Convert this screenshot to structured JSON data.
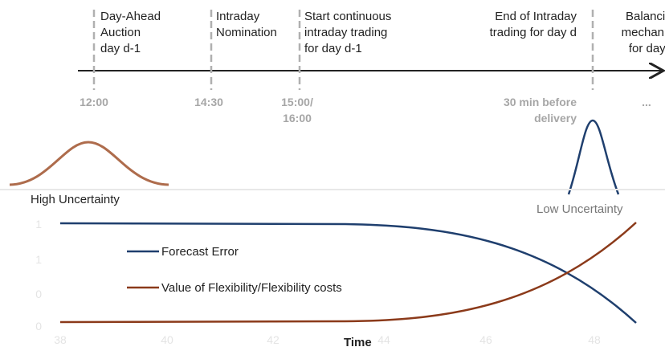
{
  "timeline": {
    "events": [
      {
        "label": [
          "Day-Ahead",
          "Auction",
          "day d-1"
        ],
        "time": [
          "12:00"
        ]
      },
      {
        "label": [
          "Intraday",
          "Nomination"
        ],
        "time": [
          "14:30"
        ]
      },
      {
        "label": [
          "Start continuous",
          "intraday trading",
          "for day d-1"
        ],
        "time": [
          "15:00/",
          "16:00"
        ]
      },
      {
        "label": [
          "End of Intraday",
          "trading for day d"
        ],
        "time": [
          "30 min before",
          "delivery"
        ]
      },
      {
        "label": [
          "Balancing",
          "mechanism",
          "for day d"
        ],
        "time": [
          "..."
        ]
      }
    ]
  },
  "uncertainty": {
    "high": "High Uncertainty",
    "low": "Low Uncertainty"
  },
  "chart": {
    "legend": [
      "Forecast Error",
      "Value of Flexibility/Flexibility costs"
    ],
    "x_label": "Time",
    "x_tick_labels": [
      "38",
      "40",
      "42",
      "44",
      "46",
      "48"
    ],
    "y_tick_labels": [
      "1",
      "1",
      "0",
      "0"
    ]
  }
}
